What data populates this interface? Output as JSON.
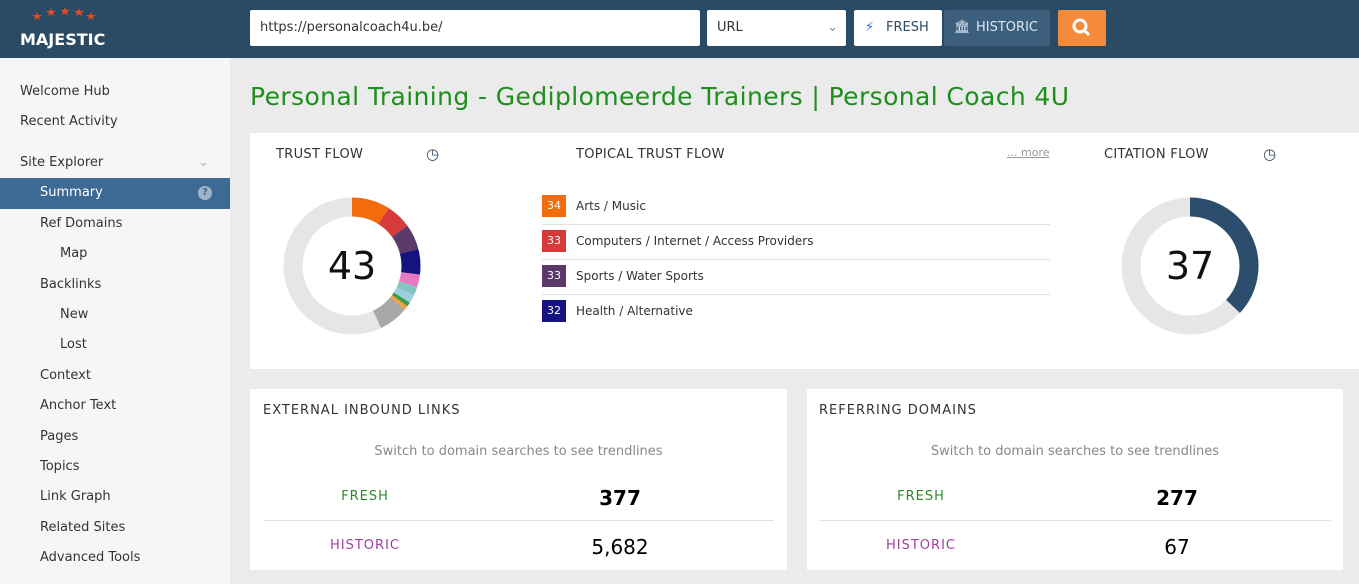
{
  "header": {
    "logo": "MAJESTIC",
    "url": "https://personalcoach4u.be/",
    "mode": "URL",
    "fresh": "FRESH",
    "historic": "HISTORIC"
  },
  "sidebar": {
    "items": [
      "Welcome Hub",
      "Recent Activity",
      "Site Explorer",
      "Summary",
      "Ref Domains",
      "Map",
      "Backlinks",
      "New",
      "Lost",
      "Context",
      "Anchor Text",
      "Pages",
      "Topics",
      "Link Graph",
      "Related Sites",
      "Advanced Tools"
    ]
  },
  "page_title": "Personal Training - Gediplomeerde Trainers | Personal Coach 4U",
  "trust_flow": {
    "label": "TRUST FLOW",
    "value": 43,
    "range": [
      0,
      100
    ],
    "colors": [
      "#f26c0d",
      "#d63a3a",
      "#5b3a6b",
      "#15137f",
      "#e879c0",
      "#7fc6c0",
      "#9ad0e0",
      "#3a9a4a",
      "#f2a23a",
      "#a8a8a8"
    ]
  },
  "topical_trust_flow": {
    "label": "TOPICAL TRUST FLOW",
    "more": "... more",
    "topics": [
      {
        "score": 34,
        "name": "Arts / Music",
        "color": "#f26c0d"
      },
      {
        "score": 33,
        "name": "Computers / Internet / Access Providers",
        "color": "#d63a3a"
      },
      {
        "score": 33,
        "name": "Sports / Water Sports",
        "color": "#5b3a6b"
      },
      {
        "score": 32,
        "name": "Health / Alternative",
        "color": "#15137f"
      }
    ]
  },
  "citation_flow": {
    "label": "CITATION FLOW",
    "value": 37,
    "range": [
      0,
      100
    ],
    "color": "#2c4d6b"
  },
  "external_inbound_links": {
    "title": "EXTERNAL INBOUND LINKS",
    "note": "Switch to domain searches to see trendlines",
    "fresh_label": "FRESH",
    "fresh": 377,
    "historic_label": "HISTORIC",
    "historic": {
      "value": 5682,
      "label": "5,682"
    }
  },
  "referring_domains": {
    "title": "REFERRING DOMAINS",
    "note": "Switch to domain searches to see trendlines",
    "fresh_label": "FRESH",
    "fresh": 277,
    "historic_label": "HISTORIC",
    "historic": 67
  }
}
